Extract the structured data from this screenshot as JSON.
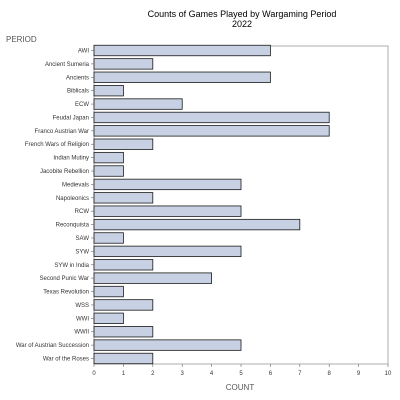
{
  "chart_data": {
    "type": "bar",
    "orientation": "horizontal",
    "title": "Counts of Games Played by Wargaming Period",
    "subtitle": "2022",
    "xlabel": "COUNT",
    "ylabel": "PERIOD",
    "xlim": [
      0,
      10
    ],
    "xticks": [
      "0",
      "1",
      "2",
      "3",
      "4",
      "5",
      "6",
      "7",
      "8",
      "9",
      "10"
    ],
    "grid": false,
    "colors": {
      "bar_fill": "#c8d1e3",
      "bar_stroke": "#1a1a1a",
      "frame": "#9a9a9a"
    },
    "categories": [
      "AWI",
      "Ancient Sumeria",
      "Ancients",
      "Biblicals",
      "ECW",
      "Feudal Japan",
      "Franco Austrian War",
      "French Wars of Religion",
      "Indian Mutiny",
      "Jacobite Rebellion",
      "Medievals",
      "Napoleonics",
      "RCW",
      "Reconquista",
      "SAW",
      "SYW",
      "SYW in India",
      "Second Punic War",
      "Texas Revolution",
      "WSS",
      "WWI",
      "WWII",
      "War of Austrian Succession",
      "War of the Roses"
    ],
    "values": [
      6,
      2,
      6,
      1,
      3,
      8,
      8,
      2,
      1,
      1,
      5,
      2,
      5,
      7,
      1,
      5,
      2,
      4,
      1,
      2,
      1,
      2,
      5,
      2
    ]
  }
}
